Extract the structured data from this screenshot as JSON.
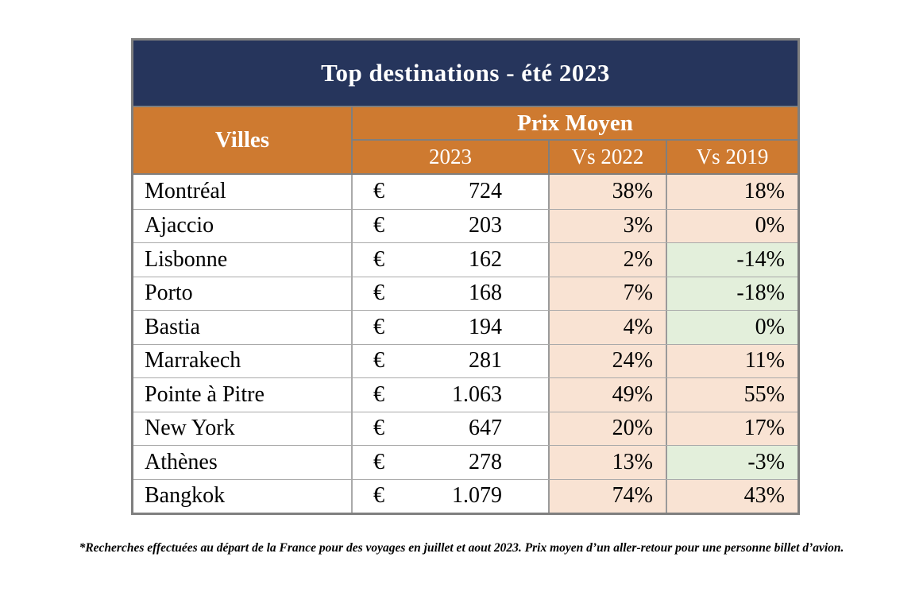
{
  "table": {
    "title": "Top destinations - été 2023",
    "columns": {
      "villes": "Villes",
      "prix_moyen": "Prix Moyen",
      "y2023": "2023",
      "vs2022": "Vs 2022",
      "vs2019": "Vs 2019"
    }
  },
  "rows": [
    {
      "city": "Montréal",
      "currency": "€",
      "price": "724",
      "vs2022": "38%",
      "vs2019": "18%",
      "vs2022_bg": "peach",
      "vs2019_bg": "peach"
    },
    {
      "city": "Ajaccio",
      "currency": "€",
      "price": "203",
      "vs2022": "3%",
      "vs2019": "0%",
      "vs2022_bg": "peach",
      "vs2019_bg": "peach"
    },
    {
      "city": "Lisbonne",
      "currency": "€",
      "price": "162",
      "vs2022": "2%",
      "vs2019": "-14%",
      "vs2022_bg": "peach",
      "vs2019_bg": "green"
    },
    {
      "city": "Porto",
      "currency": "€",
      "price": "168",
      "vs2022": "7%",
      "vs2019": "-18%",
      "vs2022_bg": "peach",
      "vs2019_bg": "green"
    },
    {
      "city": "Bastia",
      "currency": "€",
      "price": "194",
      "vs2022": "4%",
      "vs2019": "0%",
      "vs2022_bg": "peach",
      "vs2019_bg": "green"
    },
    {
      "city": "Marrakech",
      "currency": "€",
      "price": "281",
      "vs2022": "24%",
      "vs2019": "11%",
      "vs2022_bg": "peach",
      "vs2019_bg": "peach"
    },
    {
      "city": "Pointe à Pitre",
      "currency": "€",
      "price": "1.063",
      "vs2022": "49%",
      "vs2019": "55%",
      "vs2022_bg": "peach",
      "vs2019_bg": "peach"
    },
    {
      "city": "New York",
      "currency": "€",
      "price": "647",
      "vs2022": "20%",
      "vs2019": "17%",
      "vs2022_bg": "peach",
      "vs2019_bg": "peach"
    },
    {
      "city": "Athènes",
      "currency": "€",
      "price": "278",
      "vs2022": "13%",
      "vs2019": "-3%",
      "vs2022_bg": "peach",
      "vs2019_bg": "green"
    },
    {
      "city": "Bangkok",
      "currency": "€",
      "price": "1.079",
      "vs2022": "74%",
      "vs2019": "43%",
      "vs2022_bg": "peach",
      "vs2019_bg": "peach"
    }
  ],
  "footnote": "*Recherches effectuées au départ de la France pour des voyages en juillet et aout 2023. Prix moyen d’un aller-retour pour une personne billet d’avion.",
  "colors": {
    "navy": "#26355C",
    "orange": "#CE7A30",
    "peach": "#F9E3D3",
    "green": "#E3EFDB"
  },
  "chart_data": {
    "type": "table",
    "title": "Top destinations - été 2023",
    "columns": [
      "Villes",
      "Prix Moyen 2023 (€)",
      "Vs 2022",
      "Vs 2019"
    ],
    "categories": [
      "Montréal",
      "Ajaccio",
      "Lisbonne",
      "Porto",
      "Bastia",
      "Marrakech",
      "Pointe à Pitre",
      "New York",
      "Athènes",
      "Bangkok"
    ],
    "series": [
      {
        "name": "Prix Moyen 2023 (€)",
        "values": [
          724,
          203,
          162,
          168,
          194,
          281,
          1063,
          647,
          278,
          1079
        ]
      },
      {
        "name": "Vs 2022 (%)",
        "values": [
          38,
          3,
          2,
          7,
          4,
          24,
          49,
          20,
          13,
          74
        ]
      },
      {
        "name": "Vs 2019 (%)",
        "values": [
          18,
          0,
          -14,
          -18,
          0,
          11,
          55,
          17,
          -3,
          43
        ]
      }
    ],
    "footnote": "*Recherches effectuées au départ de la France pour des voyages en juillet et aout 2023. Prix moyen d’un aller-retour pour une personne billet d’avion."
  }
}
